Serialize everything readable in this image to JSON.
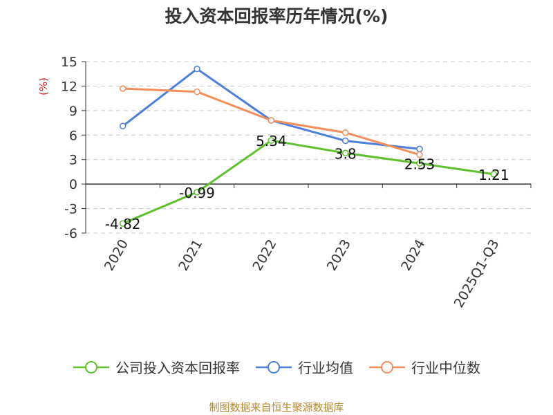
{
  "colors": {
    "company": "#5cc12a",
    "industry_avg": "#4b7fdc",
    "industry_median": "#f58d5a",
    "ylabel": "#e02020",
    "grid": "#c8c8c8",
    "source": "#b48a2e"
  },
  "source": "制图数据来自恒生聚源数据库",
  "chart_data": {
    "type": "line",
    "title": "投入资本回报率历年情况(%)",
    "ylabel": "(%)",
    "xlabel": "",
    "categories": [
      "2020",
      "2021",
      "2022",
      "2023",
      "2024",
      "2025Q1-Q3"
    ],
    "yticks": [
      15,
      12,
      9,
      6,
      3,
      0,
      -3,
      -6
    ],
    "ylim": [
      -6,
      15
    ],
    "grid": true,
    "legend_position": "bottom",
    "series": [
      {
        "name": "公司投入资本回报率",
        "color": "#5cc12a",
        "values": [
          -4.82,
          -0.99,
          5.34,
          3.8,
          2.53,
          1.21
        ],
        "labels": [
          "-4.82",
          "-0.99",
          "5.34",
          "3.8",
          "2.53",
          "1.21"
        ]
      },
      {
        "name": "行业均值",
        "color": "#4b7fdc",
        "values": [
          7.1,
          14.1,
          7.8,
          5.3,
          4.3,
          null
        ]
      },
      {
        "name": "行业中位数",
        "color": "#f58d5a",
        "values": [
          11.7,
          11.3,
          7.8,
          6.3,
          3.6,
          null
        ]
      }
    ]
  }
}
